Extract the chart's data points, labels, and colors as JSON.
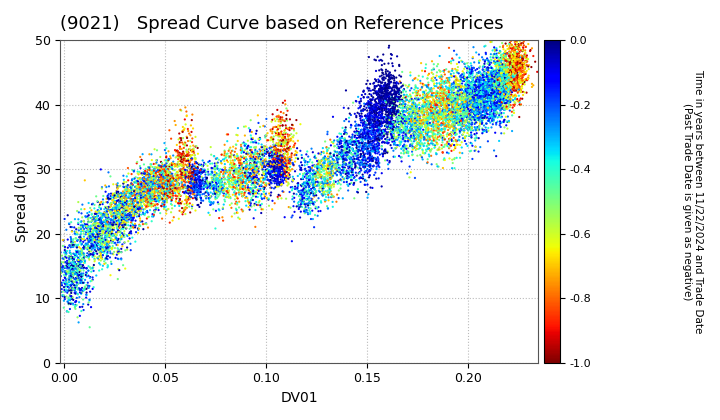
{
  "title": "(9021)   Spread Curve based on Reference Prices",
  "xlabel": "DV01",
  "ylabel": "Spread (bp)",
  "xlim": [
    -0.002,
    0.235
  ],
  "ylim": [
    0,
    50
  ],
  "xticks": [
    0.0,
    0.05,
    0.1,
    0.15,
    0.2
  ],
  "yticks": [
    0,
    10,
    20,
    30,
    40,
    50
  ],
  "colorbar_label": "Time in years between 11/22/2024 and Trade Date\n(Past Trade Date is given as negative)",
  "clim": [
    -1.0,
    0.0
  ],
  "cbar_ticks": [
    0.0,
    -0.2,
    -0.4,
    -0.6,
    -0.8,
    -1.0
  ],
  "grid_color": "#bbbbbb",
  "background_color": "#ffffff",
  "point_size": 2.5,
  "title_fontsize": 13,
  "axis_fontsize": 10,
  "tick_fontsize": 9,
  "colormap": "jet_r",
  "clusters": [
    {
      "dv": 0.005,
      "sp": 14,
      "dv_std": 0.004,
      "sp_std": 3.0,
      "n": 600,
      "c_lo": -0.55,
      "c_hi": 0.0
    },
    {
      "dv": 0.018,
      "sp": 20,
      "dv_std": 0.006,
      "sp_std": 2.5,
      "n": 800,
      "c_lo": -0.7,
      "c_hi": 0.0
    },
    {
      "dv": 0.03,
      "sp": 24,
      "dv_std": 0.005,
      "sp_std": 2.0,
      "n": 700,
      "c_lo": -0.8,
      "c_hi": 0.0
    },
    {
      "dv": 0.042,
      "sp": 27,
      "dv_std": 0.004,
      "sp_std": 1.8,
      "n": 600,
      "c_lo": -0.9,
      "c_hi": -0.1
    },
    {
      "dv": 0.05,
      "sp": 28,
      "dv_std": 0.004,
      "sp_std": 2.0,
      "n": 500,
      "c_lo": -1.0,
      "c_hi": -0.2
    },
    {
      "dv": 0.06,
      "sp": 30,
      "dv_std": 0.003,
      "sp_std": 3.5,
      "n": 400,
      "c_lo": -1.0,
      "c_hi": -0.5
    },
    {
      "dv": 0.065,
      "sp": 28,
      "dv_std": 0.003,
      "sp_std": 1.5,
      "n": 300,
      "c_lo": -0.3,
      "c_hi": 0.0
    },
    {
      "dv": 0.075,
      "sp": 28,
      "dv_std": 0.003,
      "sp_std": 2.0,
      "n": 250,
      "c_lo": -0.6,
      "c_hi": -0.1
    },
    {
      "dv": 0.085,
      "sp": 29,
      "dv_std": 0.004,
      "sp_std": 2.5,
      "n": 400,
      "c_lo": -0.9,
      "c_hi": -0.3
    },
    {
      "dv": 0.095,
      "sp": 30,
      "dv_std": 0.004,
      "sp_std": 3.0,
      "n": 500,
      "c_lo": -0.8,
      "c_hi": 0.0
    },
    {
      "dv": 0.105,
      "sp": 30,
      "dv_std": 0.003,
      "sp_std": 1.5,
      "n": 300,
      "c_lo": -0.2,
      "c_hi": 0.0
    },
    {
      "dv": 0.108,
      "sp": 33,
      "dv_std": 0.003,
      "sp_std": 3.0,
      "n": 400,
      "c_lo": -1.0,
      "c_hi": -0.5
    },
    {
      "dv": 0.12,
      "sp": 27,
      "dv_std": 0.004,
      "sp_std": 2.5,
      "n": 350,
      "c_lo": -0.5,
      "c_hi": 0.0
    },
    {
      "dv": 0.13,
      "sp": 29,
      "dv_std": 0.003,
      "sp_std": 2.0,
      "n": 300,
      "c_lo": -0.8,
      "c_hi": -0.2
    },
    {
      "dv": 0.14,
      "sp": 32,
      "dv_std": 0.004,
      "sp_std": 2.5,
      "n": 400,
      "c_lo": -0.5,
      "c_hi": 0.0
    },
    {
      "dv": 0.15,
      "sp": 34,
      "dv_std": 0.004,
      "sp_std": 3.0,
      "n": 500,
      "c_lo": -0.3,
      "c_hi": 0.0
    },
    {
      "dv": 0.155,
      "sp": 38,
      "dv_std": 0.004,
      "sp_std": 3.0,
      "n": 400,
      "c_lo": -0.15,
      "c_hi": 0.0
    },
    {
      "dv": 0.16,
      "sp": 41,
      "dv_std": 0.004,
      "sp_std": 2.5,
      "n": 500,
      "c_lo": -0.05,
      "c_hi": 0.0
    },
    {
      "dv": 0.168,
      "sp": 37,
      "dv_std": 0.005,
      "sp_std": 2.5,
      "n": 500,
      "c_lo": -0.6,
      "c_hi": -0.1
    },
    {
      "dv": 0.178,
      "sp": 38,
      "dv_std": 0.005,
      "sp_std": 3.0,
      "n": 600,
      "c_lo": -0.8,
      "c_hi": -0.2
    },
    {
      "dv": 0.188,
      "sp": 39,
      "dv_std": 0.005,
      "sp_std": 3.0,
      "n": 700,
      "c_lo": -0.9,
      "c_hi": -0.3
    },
    {
      "dv": 0.198,
      "sp": 40,
      "dv_std": 0.005,
      "sp_std": 3.0,
      "n": 800,
      "c_lo": -0.7,
      "c_hi": -0.1
    },
    {
      "dv": 0.205,
      "sp": 41,
      "dv_std": 0.004,
      "sp_std": 2.5,
      "n": 600,
      "c_lo": -0.5,
      "c_hi": -0.05
    },
    {
      "dv": 0.213,
      "sp": 42,
      "dv_std": 0.004,
      "sp_std": 2.5,
      "n": 700,
      "c_lo": -0.4,
      "c_hi": -0.05
    },
    {
      "dv": 0.218,
      "sp": 44,
      "dv_std": 0.004,
      "sp_std": 2.5,
      "n": 600,
      "c_lo": -0.7,
      "c_hi": -0.3
    },
    {
      "dv": 0.224,
      "sp": 46,
      "dv_std": 0.003,
      "sp_std": 2.5,
      "n": 700,
      "c_lo": -1.0,
      "c_hi": -0.6
    }
  ]
}
